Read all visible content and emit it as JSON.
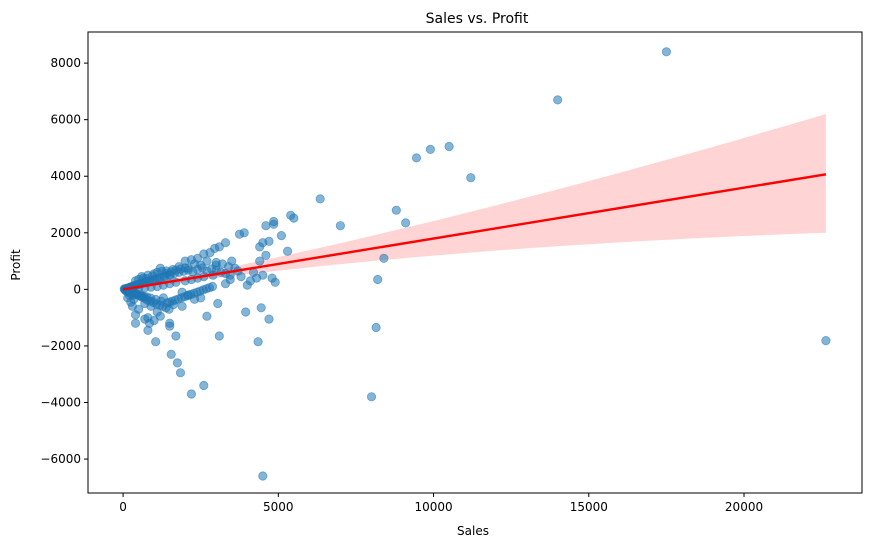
{
  "chart_data": {
    "type": "scatter",
    "title": "Sales vs. Profit",
    "xlabel": "Sales",
    "ylabel": "Profit",
    "xlim": [
      -1130,
      23800
    ],
    "ylim": [
      -7200,
      9100
    ],
    "xticks": [
      0,
      5000,
      10000,
      15000,
      20000
    ],
    "xtick_labels": [
      "0",
      "5000",
      "10000",
      "15000",
      "20000"
    ],
    "yticks": [
      -6000,
      -4000,
      -2000,
      0,
      2000,
      4000,
      6000,
      8000
    ],
    "ytick_labels": [
      "−6000",
      "−4000",
      "−2000",
      "0",
      "2000",
      "4000",
      "6000",
      "8000"
    ],
    "grid": false,
    "point_color": "#1f77b4",
    "point_alpha": 0.55,
    "regression": {
      "color": "#ff0000",
      "band_color": "#ffcccc",
      "x": [
        0,
        22638
      ],
      "y": [
        0,
        4070
      ],
      "band_upper_end": 6200,
      "band_lower_end": 2000,
      "band_halfwidth_at_origin": 60
    },
    "points": [
      [
        17500,
        8400
      ],
      [
        14000,
        6700
      ],
      [
        10500,
        5050
      ],
      [
        9900,
        4950
      ],
      [
        9450,
        4650
      ],
      [
        11200,
        3950
      ],
      [
        6350,
        3200
      ],
      [
        5400,
        2620
      ],
      [
        5500,
        2520
      ],
      [
        4850,
        2400
      ],
      [
        4850,
        2300
      ],
      [
        4600,
        2250
      ],
      [
        7000,
        2250
      ],
      [
        8800,
        2800
      ],
      [
        9100,
        2350
      ],
      [
        5100,
        1900
      ],
      [
        4700,
        1700
      ],
      [
        4500,
        1650
      ],
      [
        4400,
        1500
      ],
      [
        5300,
        1350
      ],
      [
        8400,
        1100
      ],
      [
        3300,
        1650
      ],
      [
        3100,
        1500
      ],
      [
        2950,
        1450
      ],
      [
        3900,
        2000
      ],
      [
        3750,
        1950
      ],
      [
        2800,
        1300
      ],
      [
        2600,
        1250
      ],
      [
        2400,
        1100
      ],
      [
        2200,
        1050
      ],
      [
        2000,
        1000
      ],
      [
        3500,
        1000
      ],
      [
        3000,
        950
      ],
      [
        4800,
        400
      ],
      [
        4900,
        250
      ],
      [
        4600,
        1200
      ],
      [
        4400,
        1000
      ],
      [
        4200,
        600
      ],
      [
        3700,
        650
      ],
      [
        3450,
        350
      ],
      [
        3300,
        200
      ],
      [
        4000,
        150
      ],
      [
        4500,
        500
      ],
      [
        4300,
        400
      ],
      [
        8200,
        350
      ],
      [
        3050,
        -500
      ],
      [
        1900,
        -600
      ],
      [
        1500,
        -450
      ],
      [
        1300,
        -300
      ],
      [
        1100,
        -800
      ],
      [
        900,
        -600
      ],
      [
        700,
        -500
      ],
      [
        500,
        -700
      ],
      [
        400,
        -900
      ],
      [
        300,
        -600
      ],
      [
        800,
        -1000
      ],
      [
        1200,
        -950
      ],
      [
        1500,
        -1200
      ],
      [
        850,
        -1200
      ],
      [
        700,
        -1050
      ],
      [
        1000,
        -1100
      ],
      [
        1500,
        -1300
      ],
      [
        2700,
        -950
      ],
      [
        3950,
        -800
      ],
      [
        4700,
        -1050
      ],
      [
        4450,
        -650
      ],
      [
        3100,
        -1650
      ],
      [
        4350,
        -1850
      ],
      [
        1700,
        -1650
      ],
      [
        1050,
        -1850
      ],
      [
        400,
        -1200
      ],
      [
        800,
        -1450
      ],
      [
        1550,
        -2300
      ],
      [
        1750,
        -2600
      ],
      [
        1850,
        -2950
      ],
      [
        2600,
        -3400
      ],
      [
        2200,
        -3700
      ],
      [
        8000,
        -3800
      ],
      [
        8150,
        -1350
      ],
      [
        4500,
        -6600
      ],
      [
        22638,
        -1811
      ],
      [
        2300,
        -350
      ],
      [
        2500,
        -300
      ],
      [
        1900,
        -100
      ],
      [
        2100,
        -200
      ],
      [
        600,
        -250
      ],
      [
        350,
        -350
      ],
      [
        250,
        -450
      ],
      [
        150,
        -300
      ],
      [
        200,
        -200
      ],
      [
        1200,
        750
      ],
      [
        1400,
        650
      ],
      [
        1600,
        700
      ],
      [
        1800,
        800
      ],
      [
        2100,
        750
      ],
      [
        2300,
        900
      ],
      [
        2500,
        850
      ],
      [
        2700,
        1000
      ],
      [
        3000,
        850
      ],
      [
        3200,
        900
      ],
      [
        3400,
        800
      ],
      [
        3600,
        750
      ],
      [
        3800,
        450
      ],
      [
        4100,
        300
      ],
      [
        2900,
        500
      ],
      [
        2600,
        450
      ],
      [
        2400,
        400
      ],
      [
        2200,
        350
      ],
      [
        2000,
        300
      ],
      [
        1700,
        250
      ],
      [
        1500,
        200
      ],
      [
        1300,
        150
      ],
      [
        1100,
        100
      ],
      [
        900,
        80
      ],
      [
        700,
        60
      ],
      [
        500,
        40
      ],
      [
        300,
        20
      ],
      [
        150,
        10
      ],
      [
        50,
        5
      ],
      [
        80,
        -20
      ],
      [
        120,
        30
      ],
      [
        200,
        60
      ],
      [
        260,
        90
      ],
      [
        330,
        120
      ],
      [
        420,
        150
      ],
      [
        510,
        180
      ],
      [
        600,
        210
      ],
      [
        700,
        240
      ],
      [
        820,
        280
      ],
      [
        950,
        330
      ],
      [
        1080,
        380
      ],
      [
        1200,
        420
      ],
      [
        1350,
        470
      ],
      [
        1500,
        520
      ],
      [
        1650,
        560
      ],
      [
        1800,
        600
      ],
      [
        1950,
        640
      ],
      [
        2100,
        680
      ],
      [
        2250,
        620
      ],
      [
        2400,
        700
      ],
      [
        2550,
        760
      ],
      [
        2700,
        650
      ],
      [
        2850,
        720
      ],
      [
        3000,
        680
      ],
      [
        3150,
        600
      ],
      [
        3300,
        560
      ],
      [
        3450,
        500
      ],
      [
        600,
        450
      ],
      [
        800,
        500
      ],
      [
        1000,
        550
      ],
      [
        400,
        300
      ],
      [
        500,
        350
      ],
      [
        650,
        400
      ],
      [
        750,
        380
      ],
      [
        950,
        480
      ],
      [
        1100,
        600
      ],
      [
        1250,
        640
      ],
      [
        1400,
        560
      ],
      [
        1550,
        620
      ],
      [
        1700,
        680
      ],
      [
        1850,
        720
      ],
      [
        2000,
        760
      ],
      [
        100,
        -60
      ],
      [
        180,
        -100
      ],
      [
        250,
        -150
      ],
      [
        330,
        -200
      ],
      [
        420,
        -180
      ],
      [
        520,
        -230
      ],
      [
        610,
        -280
      ],
      [
        700,
        -320
      ],
      [
        780,
        -380
      ],
      [
        880,
        -420
      ],
      [
        980,
        -460
      ],
      [
        1080,
        -520
      ],
      [
        1180,
        -560
      ],
      [
        1280,
        -600
      ],
      [
        1380,
        -650
      ],
      [
        1480,
        -700
      ],
      [
        1580,
        -420
      ],
      [
        1680,
        -380
      ],
      [
        1780,
        -340
      ],
      [
        1880,
        -300
      ],
      [
        1980,
        -260
      ],
      [
        2080,
        -220
      ],
      [
        2180,
        -180
      ],
      [
        2280,
        -140
      ],
      [
        2380,
        -100
      ],
      [
        2480,
        -60
      ],
      [
        2580,
        -20
      ],
      [
        2680,
        20
      ],
      [
        2780,
        60
      ],
      [
        2880,
        100
      ],
      [
        40,
        15
      ],
      [
        60,
        -10
      ],
      [
        90,
        25
      ],
      [
        110,
        -35
      ],
      [
        140,
        45
      ],
      [
        170,
        -55
      ],
      [
        210,
        70
      ],
      [
        240,
        -80
      ],
      [
        280,
        95
      ],
      [
        310,
        -110
      ],
      [
        360,
        130
      ],
      [
        390,
        -140
      ],
      [
        440,
        160
      ],
      [
        470,
        -170
      ],
      [
        540,
        190
      ],
      [
        570,
        -200
      ],
      [
        640,
        220
      ],
      [
        670,
        -240
      ],
      [
        740,
        260
      ],
      [
        770,
        -270
      ],
      [
        860,
        300
      ],
      [
        890,
        -310
      ],
      [
        1020,
        350
      ],
      [
        1050,
        -360
      ],
      [
        1150,
        400
      ],
      [
        1220,
        -420
      ],
      [
        1320,
        450
      ],
      [
        1420,
        -480
      ],
      [
        1520,
        500
      ],
      [
        1620,
        -540
      ]
    ]
  }
}
